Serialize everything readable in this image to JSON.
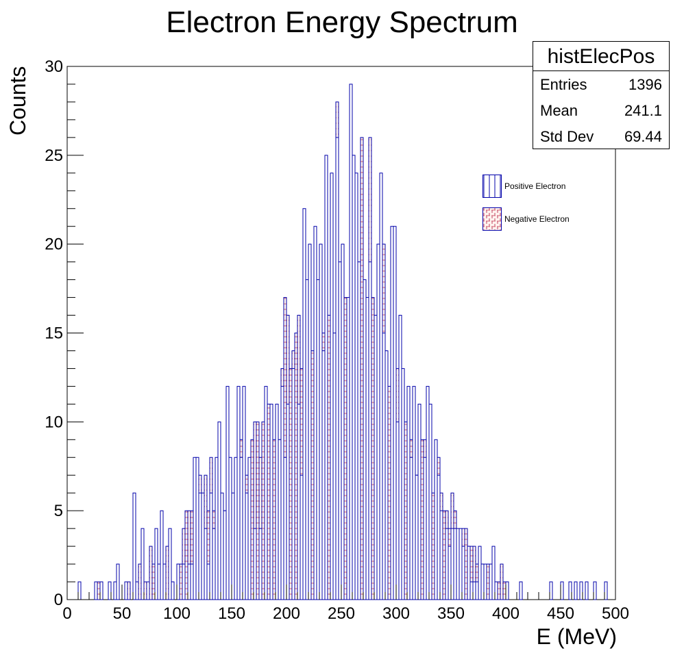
{
  "chart_data": {
    "type": "bar",
    "title": "Electron Energy Spectrum",
    "xlabel": "E (MeV)",
    "ylabel": "Counts",
    "xlim": [
      0,
      500
    ],
    "ylim": [
      0,
      30
    ],
    "x_ticks": [
      0,
      50,
      100,
      150,
      200,
      250,
      300,
      350,
      400,
      450,
      500
    ],
    "y_ticks": [
      0,
      5,
      10,
      15,
      20,
      25,
      30
    ],
    "bin_width": 2.5,
    "grid": false,
    "legend_position": "top-right",
    "stats": {
      "name": "histElecPos",
      "entries_label": "Entries",
      "entries": "1396",
      "mean_label": "Mean",
      "mean": "241.1",
      "std_label": "Std Dev",
      "std": "69.44"
    },
    "series": [
      {
        "name": "Positive Electron",
        "color": "#0000aa",
        "fill": "vertical-hatch",
        "bins": [
          [
            10,
            1
          ],
          [
            25,
            1
          ],
          [
            30,
            1
          ],
          [
            37.5,
            1
          ],
          [
            42.5,
            1
          ],
          [
            45,
            2
          ],
          [
            52.5,
            1
          ],
          [
            60,
            6
          ],
          [
            62.5,
            1
          ],
          [
            67.5,
            4
          ],
          [
            72.5,
            1
          ],
          [
            80,
            4
          ],
          [
            82.5,
            2
          ],
          [
            85,
            5
          ],
          [
            87.5,
            2
          ],
          [
            92.5,
            4
          ],
          [
            95,
            1
          ],
          [
            100,
            2
          ],
          [
            105,
            2
          ],
          [
            110,
            2
          ],
          [
            112.5,
            2
          ],
          [
            115,
            8
          ],
          [
            117.5,
            8
          ],
          [
            120,
            6
          ],
          [
            122.5,
            6
          ],
          [
            125,
            4
          ],
          [
            127.5,
            2
          ],
          [
            130,
            6
          ],
          [
            132.5,
            4
          ],
          [
            135,
            8
          ],
          [
            137.5,
            10
          ],
          [
            140,
            6
          ],
          [
            142.5,
            5
          ],
          [
            145,
            12
          ],
          [
            147.5,
            8
          ],
          [
            150,
            6
          ],
          [
            152.5,
            8
          ],
          [
            155,
            12
          ],
          [
            157.5,
            8
          ],
          [
            160,
            12
          ],
          [
            162.5,
            6
          ],
          [
            165,
            8
          ],
          [
            170,
            4
          ],
          [
            175,
            4
          ],
          [
            180,
            12
          ],
          [
            185,
            11
          ],
          [
            190,
            11
          ],
          [
            192.5,
            9
          ],
          [
            195,
            12
          ],
          [
            197.5,
            8
          ],
          [
            200,
            11
          ],
          [
            205,
            13
          ],
          [
            210,
            11
          ],
          [
            212.5,
            7
          ],
          [
            215,
            22
          ],
          [
            217.5,
            18
          ],
          [
            220,
            20
          ],
          [
            225,
            21
          ],
          [
            227.5,
            18
          ],
          [
            230,
            20
          ],
          [
            232.5,
            14
          ],
          [
            235,
            25
          ],
          [
            240,
            24
          ],
          [
            242.5,
            15
          ],
          [
            245,
            26
          ],
          [
            247.5,
            19
          ],
          [
            250,
            20
          ],
          [
            255,
            17
          ],
          [
            257.5,
            29
          ],
          [
            260,
            25
          ],
          [
            262.5,
            24
          ],
          [
            265,
            19
          ],
          [
            270,
            18
          ],
          [
            272.5,
            17
          ],
          [
            275,
            19
          ],
          [
            280,
            16
          ],
          [
            282.5,
            20
          ],
          [
            285,
            24
          ],
          [
            287.5,
            15
          ],
          [
            290,
            14
          ],
          [
            295,
            21
          ],
          [
            297.5,
            21
          ],
          [
            300,
            10
          ],
          [
            302.5,
            16
          ],
          [
            305,
            13
          ],
          [
            310,
            12
          ],
          [
            312.5,
            8
          ],
          [
            315,
            12
          ],
          [
            317.5,
            7
          ],
          [
            320,
            11
          ],
          [
            325,
            8
          ],
          [
            327.5,
            12
          ],
          [
            330,
            11
          ],
          [
            335,
            9
          ],
          [
            337.5,
            7
          ],
          [
            340,
            5
          ],
          [
            345,
            4
          ],
          [
            347.5,
            3
          ],
          [
            350,
            4
          ],
          [
            352.5,
            4
          ],
          [
            355,
            4
          ],
          [
            357.5,
            4
          ],
          [
            360,
            3
          ],
          [
            365,
            3
          ],
          [
            367.5,
            1
          ],
          [
            370,
            1
          ],
          [
            372.5,
            1
          ],
          [
            375,
            3
          ],
          [
            377.5,
            2
          ],
          [
            380,
            2
          ],
          [
            385,
            2
          ],
          [
            387.5,
            3
          ],
          [
            390,
            1
          ],
          [
            400,
            1
          ],
          [
            412.5,
            1
          ],
          [
            440,
            1
          ],
          [
            450,
            1
          ],
          [
            457.5,
            1
          ],
          [
            462.5,
            1
          ],
          [
            467.5,
            1
          ],
          [
            472.5,
            1
          ],
          [
            480,
            1
          ],
          [
            490,
            1
          ]
        ]
      },
      {
        "name": "Negative Electron",
        "color": "#d06070",
        "fill": "brick-hatch",
        "bins": [
          [
            27.5,
            1
          ],
          [
            30,
            1
          ],
          [
            45,
            1
          ],
          [
            55,
            1
          ],
          [
            60,
            1
          ],
          [
            65,
            2
          ],
          [
            70,
            1
          ],
          [
            75,
            3
          ],
          [
            77.5,
            2
          ],
          [
            80,
            3
          ],
          [
            85,
            3
          ],
          [
            90,
            3
          ],
          [
            95,
            1
          ],
          [
            100,
            2
          ],
          [
            102.5,
            2
          ],
          [
            105,
            4
          ],
          [
            107.5,
            5
          ],
          [
            110,
            5
          ],
          [
            112.5,
            5
          ],
          [
            115,
            5
          ],
          [
            120,
            7
          ],
          [
            122.5,
            5
          ],
          [
            125,
            7
          ],
          [
            127.5,
            5
          ],
          [
            130,
            8
          ],
          [
            132.5,
            5
          ],
          [
            135,
            6
          ],
          [
            137.5,
            5
          ],
          [
            140,
            4
          ],
          [
            142.5,
            5
          ],
          [
            145,
            7
          ],
          [
            147.5,
            6
          ],
          [
            150,
            5
          ],
          [
            152.5,
            7
          ],
          [
            155,
            9
          ],
          [
            157.5,
            9
          ],
          [
            160,
            8
          ],
          [
            162.5,
            7
          ],
          [
            165,
            6
          ],
          [
            167.5,
            9
          ],
          [
            170,
            10
          ],
          [
            172.5,
            10
          ],
          [
            175,
            8
          ],
          [
            177.5,
            10
          ],
          [
            180,
            10
          ],
          [
            182.5,
            11
          ],
          [
            185,
            10
          ],
          [
            187.5,
            9
          ],
          [
            190,
            10
          ],
          [
            192.5,
            9
          ],
          [
            195,
            13
          ],
          [
            197.5,
            17
          ],
          [
            200,
            16
          ],
          [
            202.5,
            13
          ],
          [
            205,
            14
          ],
          [
            207.5,
            15
          ],
          [
            210,
            16
          ],
          [
            212.5,
            13
          ],
          [
            215,
            15
          ],
          [
            217.5,
            16
          ],
          [
            220,
            15
          ],
          [
            222.5,
            14
          ],
          [
            225,
            17
          ],
          [
            227.5,
            16
          ],
          [
            230,
            17
          ],
          [
            232.5,
            15
          ],
          [
            235,
            18
          ],
          [
            237.5,
            16
          ],
          [
            240,
            20
          ],
          [
            242.5,
            15
          ],
          [
            245,
            28
          ],
          [
            247.5,
            17
          ],
          [
            250,
            18
          ],
          [
            252.5,
            17
          ],
          [
            255,
            15
          ],
          [
            257.5,
            14
          ],
          [
            260,
            19
          ],
          [
            262.5,
            17
          ],
          [
            265,
            16
          ],
          [
            267.5,
            26
          ],
          [
            270,
            17
          ],
          [
            272.5,
            16
          ],
          [
            275,
            26
          ],
          [
            277.5,
            17
          ],
          [
            280,
            14
          ],
          [
            282.5,
            13
          ],
          [
            285,
            15
          ],
          [
            287.5,
            20
          ],
          [
            290,
            14
          ],
          [
            292.5,
            12
          ],
          [
            295,
            13
          ],
          [
            297.5,
            12
          ],
          [
            300,
            13
          ],
          [
            302.5,
            12
          ],
          [
            305,
            11
          ],
          [
            307.5,
            10
          ],
          [
            310,
            11
          ],
          [
            312.5,
            9
          ],
          [
            315,
            10
          ],
          [
            317.5,
            7
          ],
          [
            320,
            9
          ],
          [
            322.5,
            9
          ],
          [
            325,
            9
          ],
          [
            327.5,
            9
          ],
          [
            330,
            7
          ],
          [
            332.5,
            6
          ],
          [
            335,
            5
          ],
          [
            337.5,
            8
          ],
          [
            340,
            6
          ],
          [
            342.5,
            5
          ],
          [
            345,
            5
          ],
          [
            347.5,
            4
          ],
          [
            350,
            6
          ],
          [
            352.5,
            5
          ],
          [
            355,
            3
          ],
          [
            357.5,
            3
          ],
          [
            360,
            4
          ],
          [
            362.5,
            4
          ],
          [
            365,
            3
          ],
          [
            367.5,
            3
          ],
          [
            370,
            3
          ],
          [
            372.5,
            2
          ],
          [
            375,
            2
          ],
          [
            377.5,
            2
          ],
          [
            380,
            1
          ],
          [
            382.5,
            2
          ],
          [
            385,
            1
          ],
          [
            387.5,
            1
          ],
          [
            390,
            1
          ],
          [
            392.5,
            1
          ],
          [
            395,
            2
          ],
          [
            397.5,
            1
          ],
          [
            400,
            1
          ],
          [
            412.5,
            1
          ]
        ]
      }
    ]
  }
}
